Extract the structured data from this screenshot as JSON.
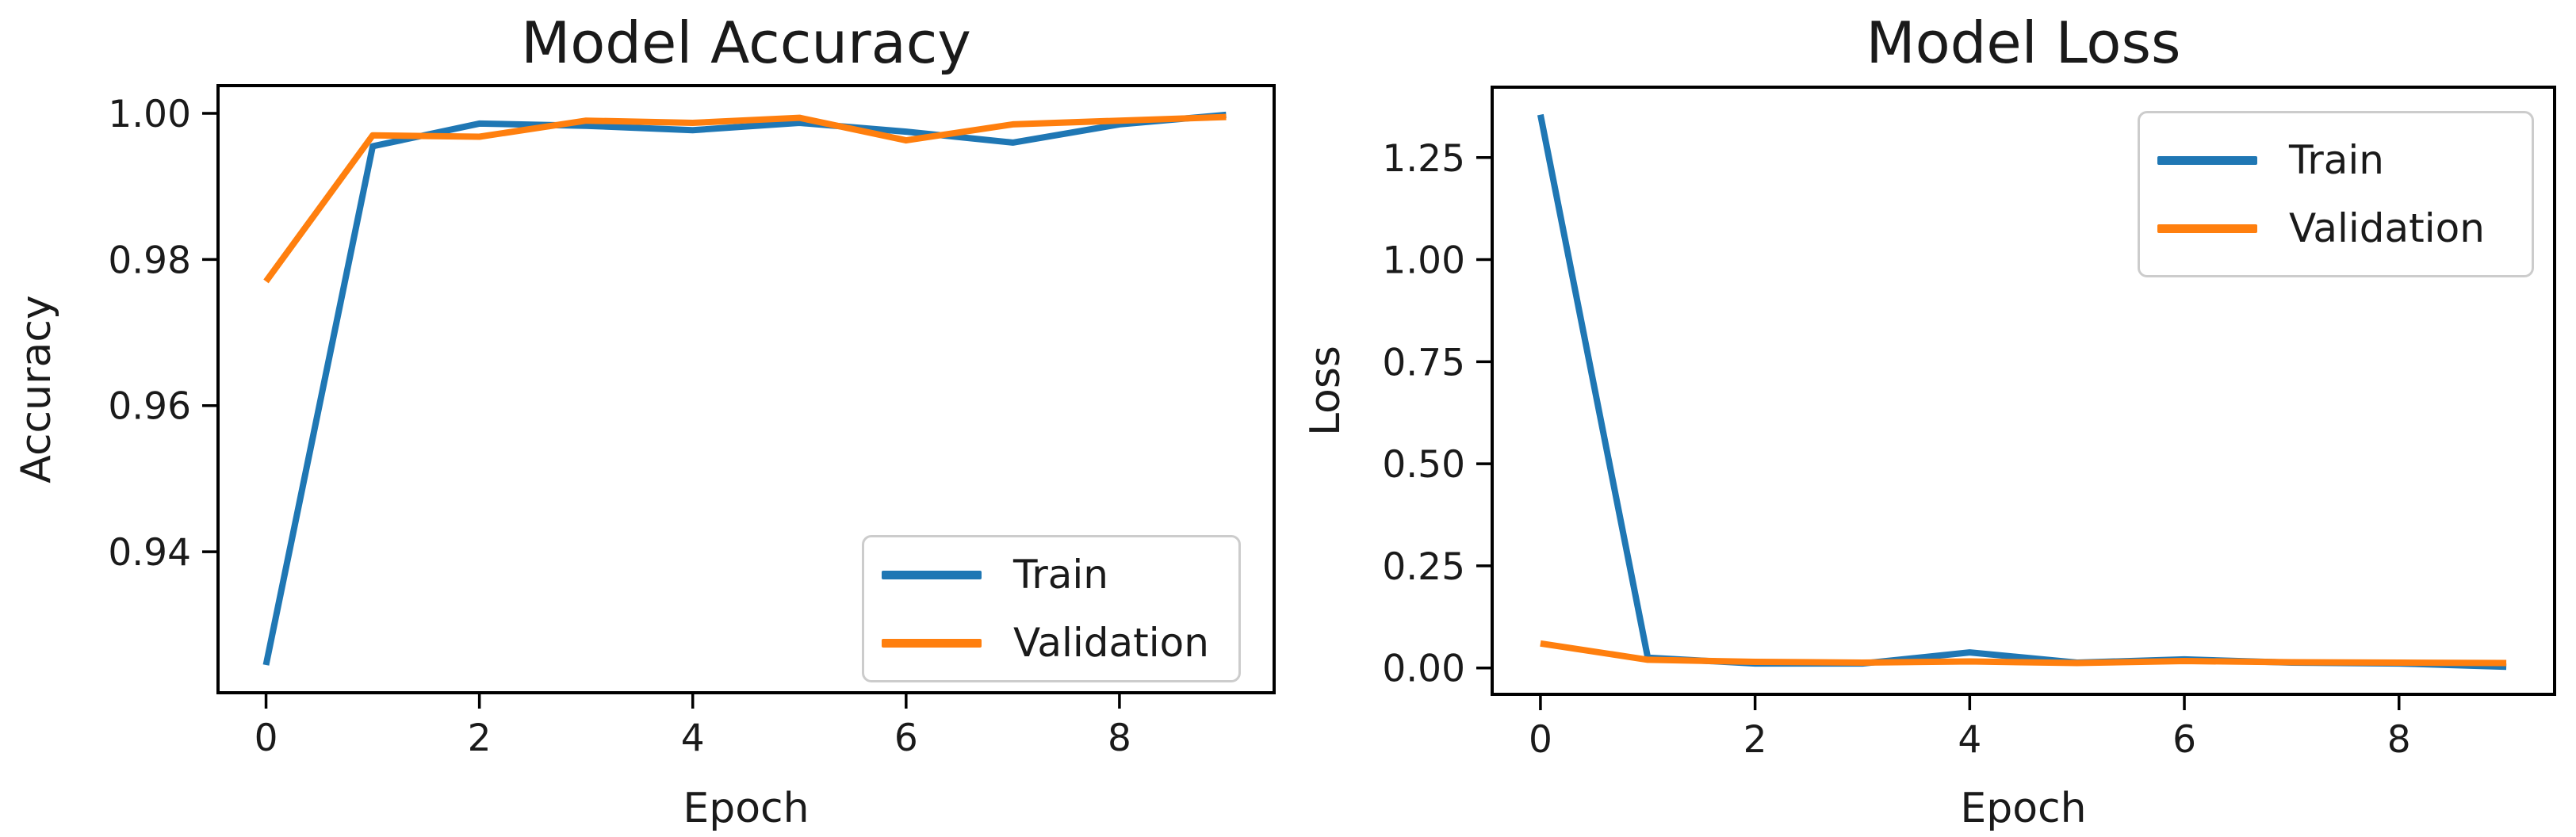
{
  "figure": {
    "background": "#ffffff",
    "text_color": "#1a1a1a",
    "spine_color": "#000000"
  },
  "chart_data": [
    {
      "type": "line",
      "title": "Model Accuracy",
      "xlabel": "Epoch",
      "ylabel": "Accuracy",
      "x": [
        0,
        1,
        2,
        3,
        4,
        5,
        6,
        7,
        8,
        9
      ],
      "series": [
        {
          "name": "Train",
          "color": "#1f77b4",
          "values": [
            0.9245,
            0.9955,
            0.9986,
            0.9983,
            0.9977,
            0.9987,
            0.9975,
            0.996,
            0.9985,
            0.9998
          ]
        },
        {
          "name": "Validation",
          "color": "#ff7f0e",
          "values": [
            0.977,
            0.997,
            0.9968,
            0.999,
            0.9987,
            0.9994,
            0.9963,
            0.9985,
            0.999,
            0.9995
          ]
        }
      ],
      "xlim": [
        -0.45,
        9.45
      ],
      "ylim": [
        0.9207,
        1.0038
      ],
      "xticks": {
        "values": [
          0,
          2,
          4,
          6,
          8
        ],
        "labels": [
          "0",
          "2",
          "4",
          "6",
          "8"
        ]
      },
      "yticks": {
        "values": [
          0.94,
          0.96,
          0.98,
          1.0
        ],
        "labels": [
          "0.94",
          "0.96",
          "0.98",
          "1.00"
        ]
      },
      "legend": {
        "position": "lower right",
        "entries": [
          "Train",
          "Validation"
        ]
      },
      "grid": false
    },
    {
      "type": "line",
      "title": "Model Loss",
      "xlabel": "Epoch",
      "ylabel": "Loss",
      "x": [
        0,
        1,
        2,
        3,
        4,
        5,
        6,
        7,
        8,
        9
      ],
      "series": [
        {
          "name": "Train",
          "color": "#1f77b4",
          "values": [
            1.355,
            0.025,
            0.011,
            0.011,
            0.038,
            0.013,
            0.021,
            0.013,
            0.011,
            0.003
          ]
        },
        {
          "name": "Validation",
          "color": "#ff7f0e",
          "values": [
            0.06,
            0.02,
            0.015,
            0.013,
            0.016,
            0.012,
            0.017,
            0.014,
            0.013,
            0.012
          ]
        }
      ],
      "xlim": [
        -0.45,
        9.45
      ],
      "ylim": [
        -0.0646,
        1.4223
      ],
      "xticks": {
        "values": [
          0,
          2,
          4,
          6,
          8
        ],
        "labels": [
          "0",
          "2",
          "4",
          "6",
          "8"
        ]
      },
      "yticks": {
        "values": [
          0.0,
          0.25,
          0.5,
          0.75,
          1.0,
          1.25
        ],
        "labels": [
          "0.00",
          "0.25",
          "0.50",
          "0.75",
          "1.00",
          "1.25"
        ]
      },
      "legend": {
        "position": "upper right",
        "entries": [
          "Train",
          "Validation"
        ]
      },
      "grid": false
    }
  ]
}
